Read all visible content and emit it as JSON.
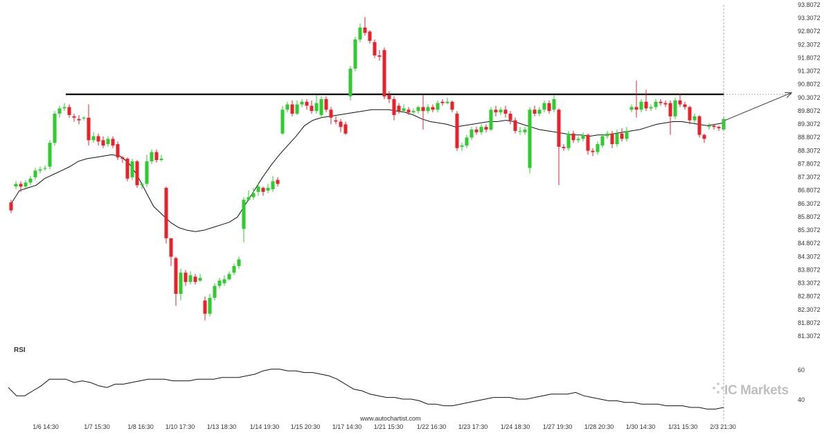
{
  "chart_data": {
    "type": "candlestick",
    "y_ticks": [
      "93.8072",
      "93.3072",
      "92.8072",
      "92.3072",
      "91.8072",
      "91.3072",
      "90.8072",
      "90.3072",
      "89.8072",
      "89.3072",
      "88.8072",
      "88.3072",
      "87.8072",
      "87.3072",
      "86.8072",
      "86.3072",
      "85.8072",
      "85.3072",
      "84.8072",
      "84.3072",
      "83.8072",
      "83.3072",
      "82.8072",
      "82.3072",
      "81.8072",
      "81.3072"
    ],
    "ylim": [
      81.3072,
      93.8072
    ],
    "x_ticks": [
      "1/6 14:30",
      "1/7 15:30",
      "1/8 16:30",
      "1/10 17:30",
      "1/13 18:30",
      "1/14 19:30",
      "1/15 20:30",
      "1/17 14:30",
      "1/21 15:30",
      "1/22 16:30",
      "1/23 17:30",
      "1/24 18:30",
      "1/27 19:30",
      "1/28 20:30",
      "1/30 14:30",
      "1/31 15:30",
      "2/3 21:30"
    ],
    "resistance_level": 90.43,
    "projection_target": 90.49,
    "candles": [
      [
        86.35,
        86.05,
        86.45,
        85.95
      ],
      [
        86.95,
        87.05,
        87.15,
        86.85
      ],
      [
        87.05,
        86.95,
        87.15,
        86.75
      ],
      [
        86.95,
        87.1,
        87.2,
        86.9
      ],
      [
        87.1,
        87.25,
        87.35,
        87.0
      ],
      [
        87.3,
        87.55,
        87.65,
        87.2
      ],
      [
        87.55,
        87.6,
        87.7,
        87.45
      ],
      [
        87.65,
        87.65,
        87.75,
        87.55
      ],
      [
        87.7,
        88.6,
        88.7,
        87.6
      ],
      [
        88.6,
        89.7,
        89.8,
        88.5
      ],
      [
        89.7,
        89.9,
        90.0,
        89.55
      ],
      [
        89.9,
        89.95,
        90.1,
        89.8
      ],
      [
        89.95,
        89.65,
        90.05,
        89.55
      ],
      [
        89.6,
        89.55,
        89.7,
        89.4
      ],
      [
        89.5,
        89.45,
        89.65,
        89.3
      ],
      [
        89.55,
        89.55,
        89.6,
        89.45
      ],
      [
        89.55,
        88.7,
        90.05,
        88.5
      ],
      [
        88.7,
        88.85,
        89.0,
        88.6
      ],
      [
        88.85,
        88.65,
        88.95,
        88.5
      ],
      [
        88.7,
        88.5,
        88.85,
        88.4
      ],
      [
        88.55,
        88.75,
        88.85,
        88.45
      ],
      [
        88.75,
        88.5,
        88.85,
        88.4
      ],
      [
        88.55,
        88.05,
        88.65,
        87.95
      ],
      [
        88.05,
        88.0,
        88.1,
        87.85
      ],
      [
        88.0,
        87.25,
        88.05,
        87.15
      ],
      [
        87.3,
        87.9,
        88.0,
        87.2
      ],
      [
        87.9,
        87.0,
        87.95,
        86.9
      ],
      [
        87.0,
        87.05,
        87.1,
        86.85
      ],
      [
        87.05,
        87.9,
        88.15,
        86.95
      ],
      [
        87.9,
        88.25,
        88.35,
        87.8
      ],
      [
        88.25,
        87.95,
        88.35,
        87.85
      ],
      [
        87.95,
        88.0,
        88.15,
        87.9
      ],
      [
        86.9,
        85.0,
        86.95,
        84.8
      ],
      [
        85.0,
        84.3,
        85.0,
        83.95
      ],
      [
        84.25,
        82.9,
        84.3,
        82.45
      ],
      [
        82.9,
        83.7,
        83.85,
        82.65
      ],
      [
        83.7,
        83.35,
        83.8,
        83.2
      ],
      [
        83.35,
        83.6,
        83.75,
        83.25
      ],
      [
        83.55,
        83.35,
        83.65,
        83.25
      ],
      [
        83.4,
        83.5,
        83.65,
        83.35
      ],
      [
        82.65,
        82.15,
        82.8,
        81.9
      ],
      [
        82.15,
        82.75,
        82.9,
        82.05
      ],
      [
        82.75,
        83.2,
        83.3,
        82.65
      ],
      [
        83.2,
        83.4,
        83.5,
        83.1
      ],
      [
        83.3,
        83.45,
        83.6,
        83.2
      ],
      [
        83.45,
        83.65,
        83.75,
        83.4
      ],
      [
        83.7,
        83.95,
        84.05,
        83.6
      ],
      [
        83.95,
        84.2,
        84.3,
        83.85
      ],
      [
        85.35,
        86.45,
        86.55,
        84.85
      ],
      [
        86.45,
        86.55,
        86.8,
        86.4
      ],
      [
        86.55,
        86.7,
        86.9,
        86.45
      ],
      [
        86.75,
        86.95,
        87.1,
        86.6
      ],
      [
        86.9,
        86.75,
        86.95,
        86.6
      ],
      [
        86.8,
        86.9,
        87.05,
        86.7
      ],
      [
        86.85,
        87.15,
        87.35,
        86.75
      ],
      [
        87.2,
        87.05,
        87.3,
        86.95
      ],
      [
        88.95,
        89.85,
        90.0,
        88.9
      ],
      [
        89.85,
        90.05,
        90.15,
        89.75
      ],
      [
        90.05,
        89.7,
        90.2,
        89.6
      ],
      [
        89.7,
        90.05,
        90.2,
        89.65
      ],
      [
        90.05,
        90.15,
        90.25,
        89.95
      ],
      [
        90.15,
        90.0,
        90.25,
        89.85
      ],
      [
        90.0,
        89.8,
        90.2,
        89.7
      ],
      [
        89.8,
        90.1,
        90.4,
        89.7
      ],
      [
        89.65,
        90.25,
        90.35,
        89.55
      ],
      [
        90.25,
        89.85,
        90.35,
        89.75
      ],
      [
        89.85,
        89.55,
        89.95,
        89.3
      ],
      [
        89.45,
        89.4,
        89.6,
        89.3
      ],
      [
        89.4,
        89.2,
        89.5,
        89.0
      ],
      [
        89.3,
        88.95,
        89.4,
        88.9
      ],
      [
        90.35,
        91.4,
        91.5,
        90.2
      ],
      [
        91.4,
        92.5,
        92.6,
        91.3
      ],
      [
        92.5,
        92.95,
        93.1,
        92.4
      ],
      [
        92.95,
        92.75,
        93.35,
        92.65
      ],
      [
        92.8,
        92.45,
        92.85,
        92.35
      ],
      [
        92.4,
        91.9,
        92.5,
        91.8
      ],
      [
        91.9,
        91.85,
        92.1,
        91.7
      ],
      [
        92.1,
        90.35,
        92.2,
        90.25
      ],
      [
        90.4,
        90.25,
        90.55,
        90.1
      ],
      [
        90.25,
        89.65,
        90.35,
        89.45
      ],
      [
        90.0,
        89.8,
        90.1,
        89.7
      ],
      [
        89.8,
        89.9,
        90.05,
        89.75
      ],
      [
        89.85,
        89.75,
        89.95,
        89.65
      ],
      [
        89.75,
        89.8,
        89.9,
        89.7
      ],
      [
        89.8,
        89.95,
        90.0,
        89.7
      ],
      [
        89.95,
        89.8,
        90.4,
        89.1
      ],
      [
        89.8,
        89.95,
        90.05,
        89.7
      ],
      [
        89.95,
        89.85,
        90.05,
        89.75
      ],
      [
        89.85,
        90.1,
        90.2,
        89.75
      ],
      [
        90.15,
        90.1,
        90.25,
        90.0
      ],
      [
        90.1,
        90.15,
        90.3,
        90.05
      ],
      [
        90.15,
        89.85,
        90.2,
        89.75
      ],
      [
        89.7,
        88.4,
        89.8,
        88.3
      ],
      [
        88.45,
        88.5,
        88.6,
        88.3
      ],
      [
        88.5,
        88.8,
        88.9,
        88.4
      ],
      [
        88.8,
        89.1,
        89.2,
        88.7
      ],
      [
        89.1,
        89.0,
        89.2,
        88.9
      ],
      [
        89.0,
        89.2,
        89.3,
        88.9
      ],
      [
        89.2,
        89.1,
        89.3,
        89.0
      ],
      [
        89.1,
        89.85,
        89.95,
        89.05
      ],
      [
        89.85,
        89.75,
        90.0,
        89.6
      ],
      [
        89.75,
        89.85,
        89.95,
        89.65
      ],
      [
        89.85,
        89.7,
        90.0,
        89.55
      ],
      [
        89.7,
        89.45,
        89.8,
        89.3
      ],
      [
        89.45,
        89.05,
        89.55,
        88.95
      ],
      [
        89.05,
        89.05,
        89.2,
        88.9
      ],
      [
        89.0,
        89.1,
        89.2,
        88.9
      ],
      [
        87.65,
        89.85,
        89.95,
        87.45
      ],
      [
        89.85,
        89.7,
        90.0,
        89.6
      ],
      [
        89.7,
        89.85,
        89.95,
        89.6
      ],
      [
        89.85,
        90.1,
        90.2,
        89.75
      ],
      [
        90.1,
        89.8,
        90.2,
        89.7
      ],
      [
        89.85,
        90.25,
        90.4,
        89.75
      ],
      [
        89.85,
        88.45,
        89.9,
        87.0
      ],
      [
        88.45,
        88.4,
        88.55,
        88.3
      ],
      [
        88.4,
        88.95,
        89.05,
        88.3
      ],
      [
        88.95,
        88.7,
        89.05,
        88.6
      ],
      [
        88.7,
        88.75,
        88.85,
        88.6
      ],
      [
        88.75,
        88.9,
        89.0,
        88.65
      ],
      [
        88.9,
        88.3,
        88.95,
        88.15
      ],
      [
        88.3,
        88.25,
        88.4,
        88.1
      ],
      [
        88.25,
        88.55,
        88.65,
        88.15
      ],
      [
        88.5,
        88.85,
        88.95,
        88.4
      ],
      [
        88.85,
        88.95,
        89.05,
        88.75
      ],
      [
        88.95,
        88.55,
        89.05,
        88.4
      ],
      [
        88.55,
        88.95,
        89.1,
        88.45
      ],
      [
        88.95,
        88.75,
        89.15,
        88.65
      ],
      [
        88.75,
        89.05,
        89.2,
        88.65
      ],
      [
        89.85,
        89.95,
        90.05,
        89.75
      ],
      [
        89.95,
        89.85,
        90.95,
        89.55
      ],
      [
        89.85,
        90.15,
        90.25,
        89.75
      ],
      [
        90.15,
        89.9,
        90.6,
        89.8
      ],
      [
        89.9,
        89.95,
        90.05,
        89.8
      ],
      [
        89.95,
        90.15,
        90.25,
        89.85
      ],
      [
        90.15,
        90.1,
        90.25,
        90.0
      ],
      [
        90.1,
        90.05,
        90.2,
        89.95
      ],
      [
        90.1,
        89.6,
        90.2,
        88.9
      ],
      [
        89.6,
        90.2,
        90.3,
        89.5
      ],
      [
        90.2,
        90.05,
        90.45,
        89.95
      ],
      [
        90.05,
        89.95,
        90.15,
        89.85
      ],
      [
        89.95,
        89.45,
        90.0,
        89.3
      ],
      [
        89.45,
        89.6,
        89.7,
        89.35
      ],
      [
        89.6,
        88.9,
        89.65,
        88.8
      ],
      [
        88.9,
        88.75,
        88.95,
        88.6
      ],
      [
        89.2,
        89.25,
        89.35,
        89.1
      ],
      [
        89.25,
        89.2,
        89.3,
        89.1
      ],
      [
        89.2,
        89.15,
        89.25,
        89.05
      ],
      [
        89.1,
        89.5,
        89.6,
        89.05
      ]
    ],
    "moving_average": [
      [
        86.3,
        86.35
      ],
      [
        86.8,
        86.4
      ],
      [
        86.9,
        86.55
      ],
      [
        87.0,
        86.7
      ],
      [
        87.25,
        86.9
      ],
      [
        87.4,
        87.1
      ],
      [
        87.55,
        87.35
      ],
      [
        87.7,
        87.55
      ],
      [
        87.9,
        87.7
      ],
      [
        88.0,
        87.8
      ],
      [
        88.05,
        87.85
      ],
      [
        88.1,
        87.85
      ],
      [
        88.15,
        87.9
      ],
      [
        88.1,
        87.95
      ],
      [
        87.85,
        87.95
      ],
      [
        87.4,
        87.75
      ],
      [
        86.8,
        87.4
      ],
      [
        86.2,
        86.9
      ],
      [
        85.9,
        86.4
      ],
      [
        85.6,
        86.0
      ],
      [
        85.4,
        85.65
      ],
      [
        85.3,
        85.4
      ],
      [
        85.25,
        85.3
      ],
      [
        85.3,
        85.3
      ],
      [
        85.4,
        85.35
      ],
      [
        85.5,
        85.45
      ],
      [
        85.6,
        85.55
      ],
      [
        85.8,
        85.7
      ],
      [
        86.3,
        86.0
      ],
      [
        86.8,
        86.45
      ],
      [
        87.3,
        86.9
      ],
      [
        87.75,
        87.35
      ],
      [
        88.15,
        87.75
      ],
      [
        88.5,
        88.1
      ],
      [
        88.85,
        88.4
      ],
      [
        89.25,
        88.65
      ],
      [
        89.45,
        88.8
      ],
      [
        89.55,
        88.95
      ],
      [
        89.6,
        89.1
      ],
      [
        89.65,
        89.25
      ],
      [
        89.7,
        89.4
      ],
      [
        89.75,
        89.55
      ],
      [
        89.8,
        89.6
      ],
      [
        89.85,
        89.65
      ],
      [
        89.85,
        89.65
      ],
      [
        89.85,
        89.7
      ],
      [
        89.8,
        89.7
      ],
      [
        89.75,
        89.7
      ],
      [
        89.65,
        89.6
      ],
      [
        89.5,
        89.55
      ],
      [
        89.4,
        89.5
      ],
      [
        89.35,
        89.45
      ],
      [
        89.3,
        89.4
      ],
      [
        89.2,
        89.35
      ],
      [
        89.25,
        89.3
      ],
      [
        89.3,
        89.35
      ],
      [
        89.35,
        89.4
      ],
      [
        89.4,
        89.45
      ],
      [
        89.4,
        89.45
      ],
      [
        89.45,
        89.45
      ],
      [
        89.4,
        89.45
      ],
      [
        89.3,
        89.4
      ],
      [
        89.2,
        89.35
      ],
      [
        89.1,
        89.3
      ],
      [
        89.05,
        89.2
      ],
      [
        89.0,
        89.1
      ],
      [
        88.95,
        89.05
      ],
      [
        88.9,
        89.0
      ],
      [
        88.9,
        88.95
      ],
      [
        88.85,
        88.95
      ],
      [
        88.9,
        88.95
      ],
      [
        88.9,
        88.95
      ],
      [
        88.95,
        88.95
      ],
      [
        89.0,
        89.0
      ],
      [
        89.05,
        89.0
      ],
      [
        89.1,
        89.05
      ],
      [
        89.2,
        89.1
      ],
      [
        89.3,
        89.2
      ],
      [
        89.35,
        89.3
      ],
      [
        89.4,
        89.35
      ],
      [
        89.4,
        89.4
      ],
      [
        89.35,
        89.4
      ],
      [
        89.3,
        89.35
      ],
      [
        89.25,
        89.3
      ],
      [
        89.3,
        89.3
      ],
      [
        89.35,
        89.35
      ]
    ],
    "rsi": {
      "label": "RSI",
      "ticks": [
        "60",
        "40"
      ],
      "ylim": [
        35,
        80
      ],
      "values": [
        52,
        47,
        47,
        50,
        53,
        57,
        57,
        57,
        55,
        56,
        55,
        53,
        52,
        54,
        54,
        55,
        56,
        57,
        57,
        57,
        56,
        56,
        56,
        57,
        57,
        57,
        58,
        58,
        58,
        59,
        60,
        62,
        63,
        63,
        62,
        62,
        61,
        61,
        60,
        59,
        57,
        54,
        51,
        50,
        48,
        47,
        46,
        46,
        45,
        45,
        44,
        42,
        42,
        41,
        41,
        42,
        43,
        44,
        45,
        46,
        46,
        46,
        45,
        45,
        46,
        47,
        48,
        48,
        48,
        49,
        47,
        46,
        45,
        44,
        44,
        43,
        43,
        42,
        42,
        42,
        41,
        41,
        41,
        40,
        40,
        39,
        39,
        40
      ]
    },
    "watermark": "www.autochartist.com",
    "brand": {
      "name": "Markets",
      "initial": "IC"
    },
    "colors": {
      "bull": "#2ecc2e",
      "bear": "#e8212b",
      "line": "#000000",
      "vline": "#999999"
    }
  }
}
